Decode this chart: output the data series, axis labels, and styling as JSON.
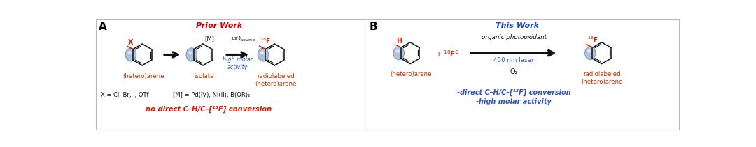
{
  "bg_color": "#ffffff",
  "border_color": "#cccccc",
  "panel_a_label": "A",
  "panel_b_label": "B",
  "prior_work_text": "Prior Work",
  "prior_work_color": "#cc0000",
  "this_work_text": "This Work",
  "this_work_color": "#1a44cc",
  "hetero_arene_color": "#cc3300",
  "blue_text_color": "#3355bb",
  "black_color": "#111111",
  "red_color": "#cc2200",
  "ball_color": "#a8bdd4",
  "ball_highlight": "#ddeeff",
  "label_x_eq": "X = Cl, Br, I, OTf",
  "label_m_eq": "[M] = Pd(IV), Ni(II), B(OR)₂",
  "label_no_direct": "no direct C–H/C–[¹⁸F] conversion",
  "label_organic": "organic photooxidant",
  "label_450nm": "450 nm laser",
  "label_o2": "O₂",
  "label_direct_b": "-direct C–H/C–[¹⁸F] conversion\n-high molar activity"
}
